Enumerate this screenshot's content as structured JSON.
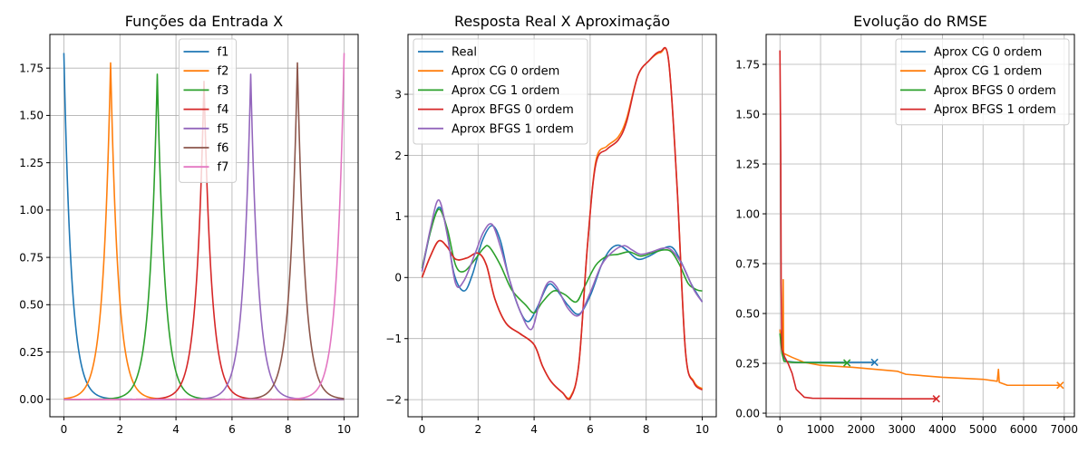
{
  "chart_data": [
    {
      "type": "line",
      "title": "Funções da Entrada X",
      "xlabel": "",
      "ylabel": "",
      "xlim": [
        -0.5,
        10.5
      ],
      "ylim": [
        -0.092,
        1.928
      ],
      "xticks": [
        0,
        2,
        4,
        6,
        8,
        10
      ],
      "yticks": [
        0.0,
        0.25,
        0.5,
        0.75,
        1.0,
        1.25,
        1.5,
        1.75
      ],
      "ytick_labels": [
        "0.00",
        "0.25",
        "0.50",
        "0.75",
        "1.00",
        "1.25",
        "1.50",
        "1.75"
      ],
      "grid": true,
      "legend_position": "top-center",
      "series": [
        {
          "name": "f1",
          "color": "#1f77b4",
          "center": 0.0,
          "peak": 1.83,
          "scale": 0.27
        },
        {
          "name": "f2",
          "color": "#ff7f0e",
          "center": 1.667,
          "peak": 1.78,
          "scale": 0.27
        },
        {
          "name": "f3",
          "color": "#2ca02c",
          "center": 3.333,
          "peak": 1.72,
          "scale": 0.27
        },
        {
          "name": "f4",
          "color": "#d62728",
          "center": 5.0,
          "peak": 1.68,
          "scale": 0.27
        },
        {
          "name": "f5",
          "color": "#9467bd",
          "center": 6.667,
          "peak": 1.72,
          "scale": 0.27
        },
        {
          "name": "f6",
          "color": "#8c564b",
          "center": 8.333,
          "peak": 1.78,
          "scale": 0.27
        },
        {
          "name": "f7",
          "color": "#e377c2",
          "center": 10.0,
          "peak": 1.83,
          "scale": 0.27
        }
      ]
    },
    {
      "type": "line",
      "title": "Resposta Real X Aproximação",
      "xlabel": "",
      "ylabel": "",
      "xlim": [
        -0.5,
        10.5
      ],
      "ylim": [
        -2.28,
        3.98
      ],
      "xticks": [
        0,
        2,
        4,
        6,
        8,
        10
      ],
      "yticks": [
        -2,
        -1,
        0,
        1,
        2,
        3
      ],
      "ytick_labels": [
        "−2",
        "−1",
        "0",
        "1",
        "2",
        "3"
      ],
      "grid": true,
      "legend_position": "top-left",
      "series": [
        {
          "name": "Real",
          "color": "#1f77b4",
          "points": [
            [
              0,
              0.1
            ],
            [
              0.3,
              0.75
            ],
            [
              0.6,
              1.15
            ],
            [
              0.85,
              0.85
            ],
            [
              1.15,
              0.05
            ],
            [
              1.5,
              -0.22
            ],
            [
              1.8,
              0.05
            ],
            [
              2.15,
              0.6
            ],
            [
              2.5,
              0.85
            ],
            [
              2.8,
              0.6
            ],
            [
              3.1,
              0.0
            ],
            [
              3.5,
              -0.55
            ],
            [
              3.8,
              -0.72
            ],
            [
              4.1,
              -0.5
            ],
            [
              4.5,
              -0.12
            ],
            [
              4.8,
              -0.2
            ],
            [
              5.2,
              -0.45
            ],
            [
              5.6,
              -0.6
            ],
            [
              6.0,
              -0.3
            ],
            [
              6.4,
              0.2
            ],
            [
              6.7,
              0.45
            ],
            [
              7.0,
              0.53
            ],
            [
              7.3,
              0.45
            ],
            [
              7.7,
              0.3
            ],
            [
              8.1,
              0.35
            ],
            [
              8.5,
              0.45
            ],
            [
              8.9,
              0.5
            ],
            [
              9.2,
              0.3
            ],
            [
              9.6,
              -0.1
            ],
            [
              10.0,
              -0.4
            ]
          ]
        },
        {
          "name": "Aprox CG 0 ordem",
          "color": "#ff7f0e",
          "points": [
            [
              0,
              0.0
            ],
            [
              0.3,
              0.35
            ],
            [
              0.6,
              0.6
            ],
            [
              0.9,
              0.5
            ],
            [
              1.2,
              0.3
            ],
            [
              1.6,
              0.32
            ],
            [
              2.0,
              0.4
            ],
            [
              2.3,
              0.2
            ],
            [
              2.6,
              -0.35
            ],
            [
              3.0,
              -0.75
            ],
            [
              3.5,
              -0.92
            ],
            [
              4.0,
              -1.1
            ],
            [
              4.3,
              -1.45
            ],
            [
              4.6,
              -1.7
            ],
            [
              5.0,
              -1.88
            ],
            [
              5.3,
              -1.95
            ],
            [
              5.6,
              -1.4
            ],
            [
              5.9,
              0.5
            ],
            [
              6.2,
              1.9
            ],
            [
              6.6,
              2.15
            ],
            [
              7.0,
              2.3
            ],
            [
              7.3,
              2.6
            ],
            [
              7.7,
              3.3
            ],
            [
              8.1,
              3.55
            ],
            [
              8.5,
              3.68
            ],
            [
              8.8,
              3.55
            ],
            [
              9.1,
              1.5
            ],
            [
              9.4,
              -1.2
            ],
            [
              9.7,
              -1.7
            ],
            [
              10.0,
              -1.82
            ]
          ]
        },
        {
          "name": "Aprox CG 1 ordem",
          "color": "#2ca02c",
          "points": [
            [
              0,
              0.15
            ],
            [
              0.3,
              0.75
            ],
            [
              0.6,
              1.12
            ],
            [
              0.9,
              0.8
            ],
            [
              1.2,
              0.2
            ],
            [
              1.5,
              0.1
            ],
            [
              1.9,
              0.3
            ],
            [
              2.2,
              0.48
            ],
            [
              2.4,
              0.5
            ],
            [
              2.8,
              0.2
            ],
            [
              3.2,
              -0.2
            ],
            [
              3.7,
              -0.45
            ],
            [
              4.0,
              -0.58
            ],
            [
              4.3,
              -0.4
            ],
            [
              4.7,
              -0.22
            ],
            [
              5.1,
              -0.28
            ],
            [
              5.5,
              -0.4
            ],
            [
              5.8,
              -0.15
            ],
            [
              6.2,
              0.2
            ],
            [
              6.6,
              0.35
            ],
            [
              7.0,
              0.38
            ],
            [
              7.4,
              0.42
            ],
            [
              7.8,
              0.35
            ],
            [
              8.2,
              0.4
            ],
            [
              8.6,
              0.45
            ],
            [
              8.9,
              0.42
            ],
            [
              9.2,
              0.2
            ],
            [
              9.5,
              -0.1
            ],
            [
              9.8,
              -0.2
            ],
            [
              10.0,
              -0.22
            ]
          ]
        },
        {
          "name": "Aprox BFGS 0 ordem",
          "color": "#d62728",
          "points": [
            [
              0,
              0.0
            ],
            [
              0.3,
              0.35
            ],
            [
              0.6,
              0.6
            ],
            [
              0.9,
              0.5
            ],
            [
              1.2,
              0.3
            ],
            [
              1.6,
              0.32
            ],
            [
              2.0,
              0.4
            ],
            [
              2.3,
              0.2
            ],
            [
              2.6,
              -0.35
            ],
            [
              3.0,
              -0.75
            ],
            [
              3.5,
              -0.92
            ],
            [
              4.0,
              -1.1
            ],
            [
              4.3,
              -1.45
            ],
            [
              4.6,
              -1.7
            ],
            [
              5.0,
              -1.88
            ],
            [
              5.3,
              -1.97
            ],
            [
              5.6,
              -1.4
            ],
            [
              5.9,
              0.5
            ],
            [
              6.2,
              1.85
            ],
            [
              6.6,
              2.1
            ],
            [
              7.0,
              2.25
            ],
            [
              7.3,
              2.55
            ],
            [
              7.7,
              3.3
            ],
            [
              8.1,
              3.55
            ],
            [
              8.5,
              3.7
            ],
            [
              8.8,
              3.55
            ],
            [
              9.1,
              1.5
            ],
            [
              9.4,
              -1.2
            ],
            [
              9.7,
              -1.72
            ],
            [
              10.0,
              -1.84
            ]
          ]
        },
        {
          "name": "Aprox BFGS 1 ordem",
          "color": "#9467bd",
          "points": [
            [
              0,
              0.1
            ],
            [
              0.3,
              0.8
            ],
            [
              0.6,
              1.27
            ],
            [
              0.9,
              0.7
            ],
            [
              1.2,
              -0.1
            ],
            [
              1.5,
              -0.05
            ],
            [
              1.9,
              0.4
            ],
            [
              2.2,
              0.75
            ],
            [
              2.5,
              0.87
            ],
            [
              2.8,
              0.5
            ],
            [
              3.1,
              0.0
            ],
            [
              3.5,
              -0.55
            ],
            [
              3.9,
              -0.85
            ],
            [
              4.2,
              -0.4
            ],
            [
              4.5,
              -0.08
            ],
            [
              4.8,
              -0.15
            ],
            [
              5.2,
              -0.5
            ],
            [
              5.6,
              -0.62
            ],
            [
              6.0,
              -0.25
            ],
            [
              6.4,
              0.2
            ],
            [
              6.8,
              0.42
            ],
            [
              7.2,
              0.52
            ],
            [
              7.5,
              0.45
            ],
            [
              7.8,
              0.38
            ],
            [
              8.2,
              0.42
            ],
            [
              8.6,
              0.48
            ],
            [
              8.9,
              0.45
            ],
            [
              9.3,
              0.2
            ],
            [
              9.7,
              -0.2
            ],
            [
              10.0,
              -0.4
            ]
          ]
        }
      ]
    },
    {
      "type": "line",
      "title": "Evolução do RMSE",
      "xlabel": "",
      "ylabel": "",
      "xlim": [
        -340,
        7250
      ],
      "ylim": [
        -0.018,
        1.9
      ],
      "xticks": [
        0,
        1000,
        2000,
        3000,
        4000,
        5000,
        6000,
        7000
      ],
      "yticks": [
        0.0,
        0.25,
        0.5,
        0.75,
        1.0,
        1.25,
        1.5,
        1.75
      ],
      "ytick_labels": [
        "0.00",
        "0.25",
        "0.50",
        "0.75",
        "1.00",
        "1.25",
        "1.50",
        "1.75"
      ],
      "grid": true,
      "legend_position": "top-right",
      "series": [
        {
          "name": "Aprox CG 0 ordem",
          "color": "#1f77b4",
          "points": [
            [
              0,
              0.42
            ],
            [
              60,
              0.3
            ],
            [
              150,
              0.26
            ],
            [
              400,
              0.255
            ],
            [
              1000,
              0.255
            ],
            [
              2000,
              0.255
            ],
            [
              2330,
              0.255
            ]
          ],
          "end_marker": [
            2330,
            0.255
          ]
        },
        {
          "name": "Aprox CG 1 ordem",
          "color": "#ff7f0e",
          "points": [
            [
              0,
              0.42
            ],
            [
              50,
              0.32
            ],
            [
              70,
              0.29
            ],
            [
              80,
              0.67
            ],
            [
              90,
              0.3
            ],
            [
              300,
              0.28
            ],
            [
              600,
              0.255
            ],
            [
              1000,
              0.24
            ],
            [
              1800,
              0.23
            ],
            [
              2900,
              0.21
            ],
            [
              3100,
              0.195
            ],
            [
              4000,
              0.18
            ],
            [
              5000,
              0.17
            ],
            [
              5350,
              0.16
            ],
            [
              5380,
              0.22
            ],
            [
              5400,
              0.155
            ],
            [
              5600,
              0.14
            ],
            [
              6000,
              0.14
            ],
            [
              6900,
              0.14
            ]
          ],
          "end_marker": [
            6900,
            0.14
          ]
        },
        {
          "name": "Aprox BFGS 0 ordem",
          "color": "#2ca02c",
          "points": [
            [
              0,
              0.4
            ],
            [
              50,
              0.3
            ],
            [
              100,
              0.26
            ],
            [
              300,
              0.255
            ],
            [
              800,
              0.253
            ],
            [
              1300,
              0.252
            ],
            [
              1650,
              0.252
            ]
          ],
          "end_marker": [
            1650,
            0.252
          ]
        },
        {
          "name": "Aprox BFGS 1 ordem",
          "color": "#d62728",
          "points": [
            [
              0,
              1.82
            ],
            [
              20,
              1.3
            ],
            [
              30,
              0.65
            ],
            [
              50,
              0.32
            ],
            [
              120,
              0.28
            ],
            [
              200,
              0.25
            ],
            [
              300,
              0.2
            ],
            [
              400,
              0.12
            ],
            [
              500,
              0.1
            ],
            [
              600,
              0.08
            ],
            [
              800,
              0.075
            ],
            [
              2000,
              0.073
            ],
            [
              3000,
              0.072
            ],
            [
              3850,
              0.072
            ]
          ],
          "end_marker": [
            3850,
            0.072
          ]
        }
      ]
    }
  ]
}
